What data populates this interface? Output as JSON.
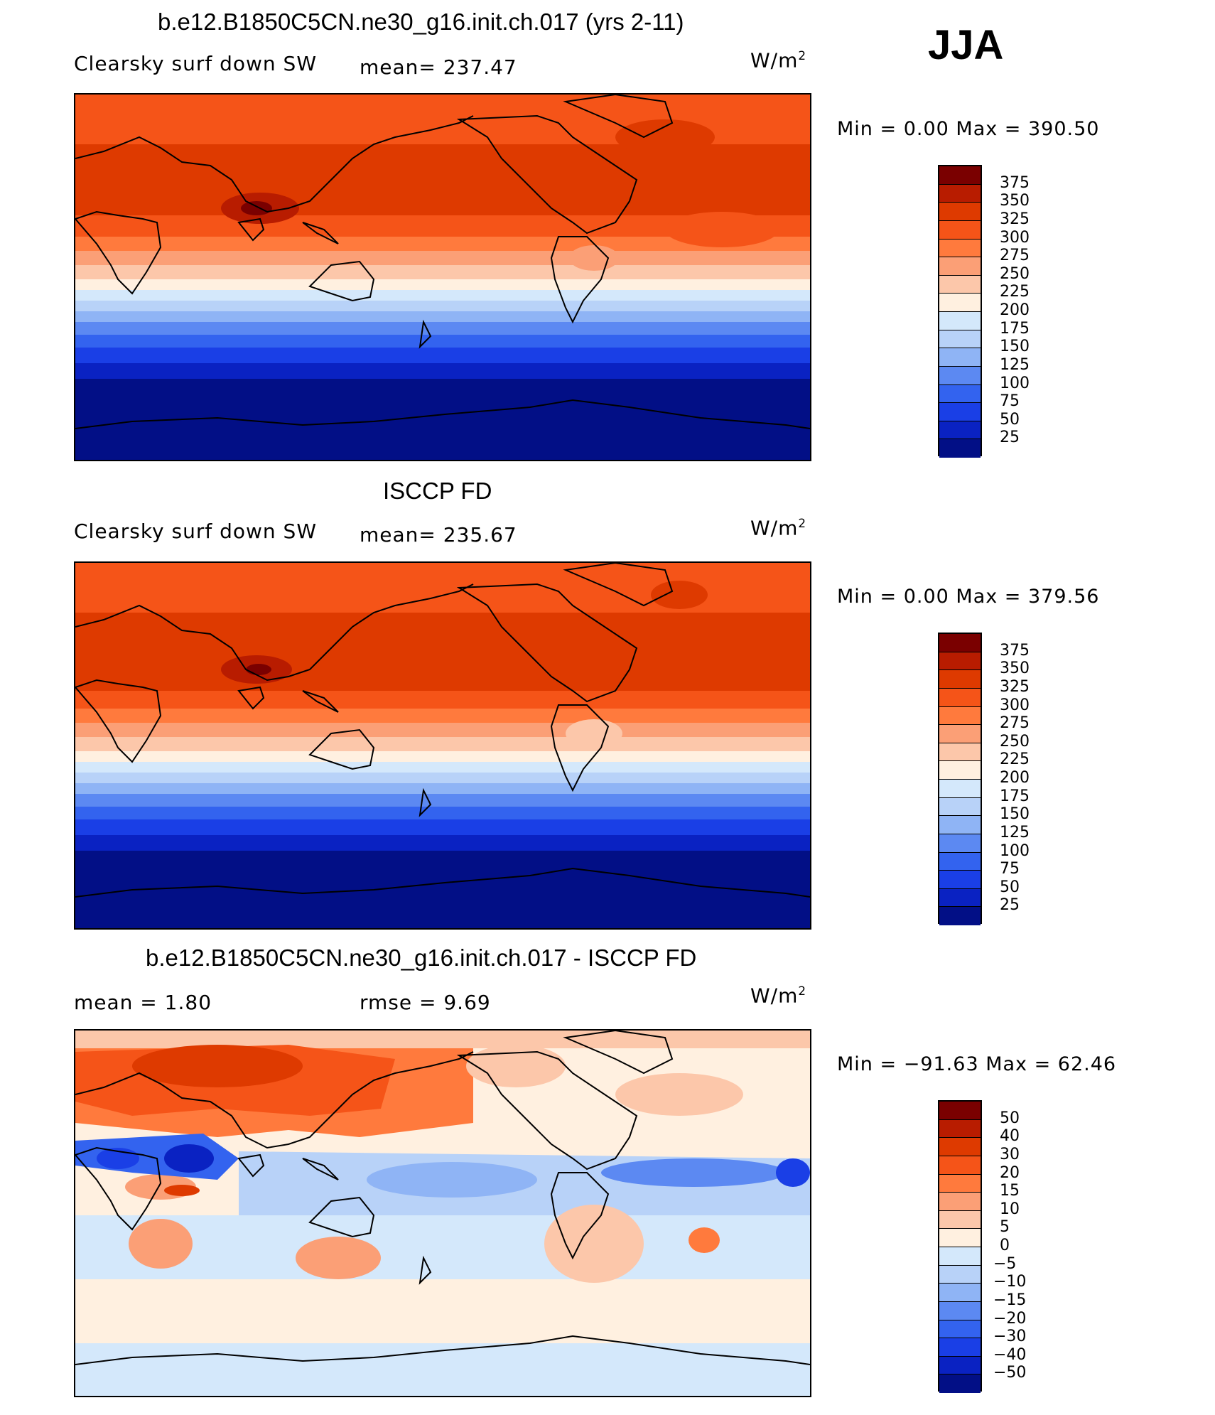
{
  "season": "JJA",
  "panels": [
    {
      "title": "b.e12.B1850C5CN.ne30_g16.init.ch.017 (yrs 2-11)",
      "left_label": "Clearsky surf down SW",
      "center_label": "mean= 237.47",
      "units": "W/m",
      "units_exp": "2",
      "minmax": "Min =     0.00  Max  =  390.50",
      "colorbar_labels": [
        "375",
        "350",
        "325",
        "300",
        "275",
        "250",
        "225",
        "200",
        "175",
        "150",
        "125",
        "100",
        "75",
        "50",
        "25"
      ],
      "colorbar_colors": [
        "#7a0000",
        "#b81c00",
        "#de3a00",
        "#f55418",
        "#ff7a3d",
        "#fb9f76",
        "#fcc7aa",
        "#fff0e0",
        "#d4e8fb",
        "#b8d2f8",
        "#8fb4f5",
        "#5c89f2",
        "#3363ef",
        "#1a3fe6",
        "#0a22c2",
        "#020f86"
      ]
    },
    {
      "title": "ISCCP FD",
      "left_label": "Clearsky surf down SW",
      "center_label": "mean= 235.67",
      "units": "W/m",
      "units_exp": "2",
      "minmax": "Min =     0.00  Max  =  379.56",
      "colorbar_labels": [
        "375",
        "350",
        "325",
        "300",
        "275",
        "250",
        "225",
        "200",
        "175",
        "150",
        "125",
        "100",
        "75",
        "50",
        "25"
      ],
      "colorbar_colors": [
        "#7a0000",
        "#b81c00",
        "#de3a00",
        "#f55418",
        "#ff7a3d",
        "#fb9f76",
        "#fcc7aa",
        "#fff0e0",
        "#d4e8fb",
        "#b8d2f8",
        "#8fb4f5",
        "#5c89f2",
        "#3363ef",
        "#1a3fe6",
        "#0a22c2",
        "#020f86"
      ]
    },
    {
      "title": "b.e12.B1850C5CN.ne30_g16.init.ch.017 - ISCCP FD",
      "left_label": "mean =     1.80",
      "center_label": "rmse =     9.69",
      "units": "W/m",
      "units_exp": "2",
      "minmax": "Min = −91.63  Max  =    62.46",
      "colorbar_labels": [
        "50",
        "40",
        "30",
        "20",
        "15",
        "10",
        "5",
        "0",
        "−5",
        "−10",
        "−15",
        "−20",
        "−30",
        "−40",
        "−50"
      ],
      "colorbar_colors": [
        "#7a0000",
        "#b81c00",
        "#de3a00",
        "#f55418",
        "#ff7a3d",
        "#fb9f76",
        "#fcc7aa",
        "#fff0e0",
        "#d4e8fb",
        "#b8d2f8",
        "#8fb4f5",
        "#5c89f2",
        "#3363ef",
        "#1a3fe6",
        "#0a22c2",
        "#020f86"
      ]
    }
  ]
}
